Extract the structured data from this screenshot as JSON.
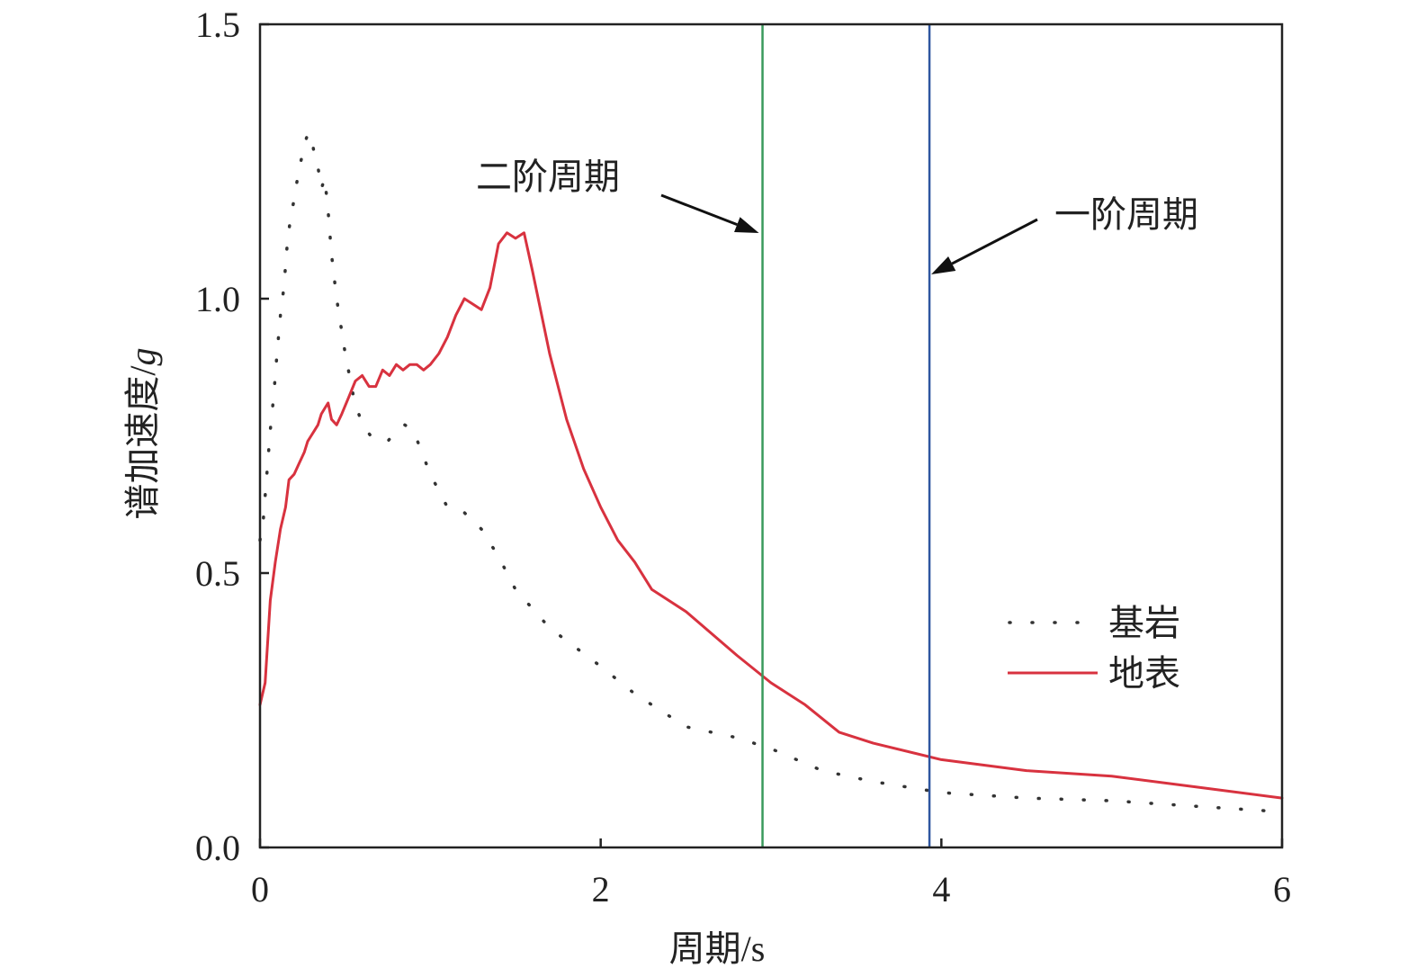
{
  "chart_data": {
    "type": "line",
    "title": "",
    "xlabel": "周期/s",
    "ylabel": "谱加速度/",
    "ylabel_unit": "g",
    "xlim": [
      0,
      6
    ],
    "ylim": [
      0,
      1.5
    ],
    "x_ticks": [
      0,
      2,
      4,
      6
    ],
    "x_tick_labels": [
      "0",
      "2",
      "4",
      "6"
    ],
    "y_ticks": [
      0,
      0.5,
      1.0,
      1.5
    ],
    "y_tick_labels": [
      "0.0",
      "0.5",
      "1.0",
      "1.5"
    ],
    "grid": false,
    "legend_position": "right",
    "series": [
      {
        "name": "基岩",
        "style": "dotted",
        "color": "#333333",
        "x": [
          0.0,
          0.02,
          0.04,
          0.06,
          0.08,
          0.1,
          0.12,
          0.14,
          0.16,
          0.18,
          0.2,
          0.22,
          0.24,
          0.26,
          0.28,
          0.3,
          0.32,
          0.34,
          0.36,
          0.38,
          0.4,
          0.42,
          0.45,
          0.5,
          0.55,
          0.6,
          0.65,
          0.7,
          0.75,
          0.8,
          0.85,
          0.9,
          0.95,
          1.0,
          1.1,
          1.2,
          1.3,
          1.4,
          1.5,
          1.7,
          2.0,
          2.2,
          2.5,
          2.8,
          3.0,
          3.3,
          3.6,
          4.0,
          4.5,
          5.0,
          5.5,
          6.0
        ],
        "values": [
          0.56,
          0.6,
          0.68,
          0.76,
          0.82,
          0.9,
          0.97,
          1.02,
          1.1,
          1.15,
          1.18,
          1.22,
          1.25,
          1.28,
          1.3,
          1.3,
          1.26,
          1.24,
          1.2,
          1.22,
          1.16,
          1.08,
          1.0,
          0.9,
          0.82,
          0.77,
          0.75,
          0.74,
          0.74,
          0.76,
          0.77,
          0.76,
          0.72,
          0.68,
          0.62,
          0.61,
          0.58,
          0.53,
          0.47,
          0.4,
          0.33,
          0.28,
          0.22,
          0.2,
          0.18,
          0.14,
          0.12,
          0.1,
          0.09,
          0.085,
          0.075,
          0.065
        ]
      },
      {
        "name": "地表",
        "style": "solid",
        "color": "#d8323f",
        "x": [
          0.0,
          0.03,
          0.06,
          0.09,
          0.12,
          0.15,
          0.17,
          0.2,
          0.23,
          0.26,
          0.28,
          0.3,
          0.32,
          0.34,
          0.36,
          0.38,
          0.4,
          0.42,
          0.45,
          0.48,
          0.52,
          0.56,
          0.6,
          0.64,
          0.68,
          0.72,
          0.76,
          0.8,
          0.84,
          0.88,
          0.92,
          0.96,
          1.0,
          1.05,
          1.1,
          1.15,
          1.2,
          1.25,
          1.3,
          1.35,
          1.4,
          1.45,
          1.5,
          1.55,
          1.6,
          1.7,
          1.8,
          1.9,
          2.0,
          2.1,
          2.2,
          2.3,
          2.5,
          2.8,
          3.0,
          3.2,
          3.4,
          3.6,
          4.0,
          4.5,
          5.0,
          5.5,
          6.0
        ],
        "values": [
          0.26,
          0.3,
          0.45,
          0.52,
          0.58,
          0.62,
          0.67,
          0.68,
          0.7,
          0.72,
          0.74,
          0.75,
          0.76,
          0.77,
          0.79,
          0.8,
          0.81,
          0.78,
          0.77,
          0.79,
          0.82,
          0.85,
          0.86,
          0.84,
          0.84,
          0.87,
          0.86,
          0.88,
          0.87,
          0.88,
          0.88,
          0.87,
          0.88,
          0.9,
          0.93,
          0.97,
          1.0,
          0.99,
          0.98,
          1.02,
          1.1,
          1.12,
          1.11,
          1.12,
          1.05,
          0.9,
          0.78,
          0.69,
          0.62,
          0.56,
          0.52,
          0.47,
          0.43,
          0.35,
          0.3,
          0.26,
          0.21,
          0.19,
          0.16,
          0.14,
          0.13,
          0.11,
          0.09
        ]
      }
    ],
    "vertical_lines": [
      {
        "x": 2.95,
        "color": "#3a9a5c",
        "label": "二阶周期"
      },
      {
        "x": 3.93,
        "color": "#2f56a0",
        "label": "一阶周期"
      }
    ]
  }
}
